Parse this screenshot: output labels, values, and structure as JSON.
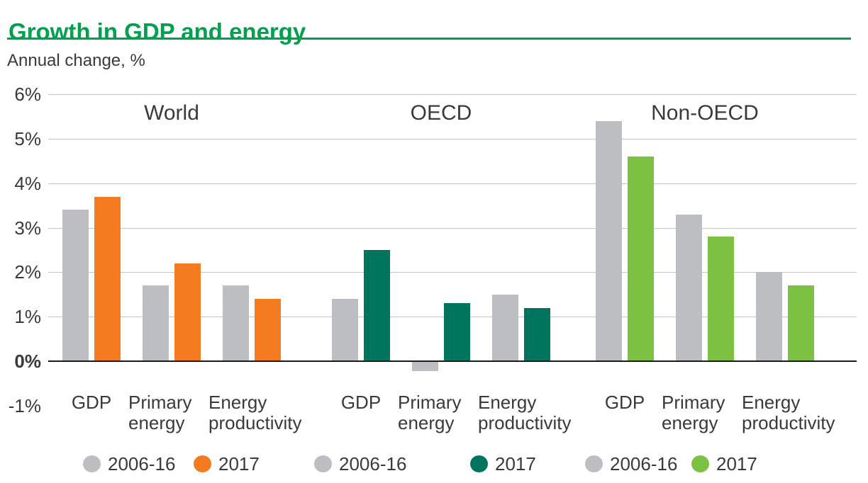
{
  "header": {
    "title": "Growth in GDP and energy",
    "subtitle": "Annual change, %"
  },
  "colors": {
    "title_green": "#00A14E",
    "text_dark": "#3A3A3C",
    "gridline_gray": "#C4C5C7",
    "axis_black": "#1A1A1A",
    "bar_gray": "#BDBEC1",
    "world_orange": "#F47B20",
    "oecd_teal": "#00755E",
    "non_oecd_green": "#7CC142",
    "page_background": "#FFFFFF"
  },
  "chart_data": {
    "type": "bar",
    "title": "Growth in GDP and energy",
    "ylabel": "Annual change, %",
    "ylim": [
      -1,
      6
    ],
    "ytick_labels": [
      "6%",
      "5%",
      "4%",
      "3%",
      "2%",
      "1%",
      "0%",
      "-1%"
    ],
    "ytick_values": [
      6,
      5,
      4,
      3,
      2,
      1,
      0,
      -1
    ],
    "grid": "horizontal, light gray, solid zero axis",
    "legend_position": "bottom",
    "categories": [
      "GDP",
      "Primary energy",
      "Energy productivity"
    ],
    "categories_lines": [
      [
        "GDP"
      ],
      [
        "Primary",
        "energy"
      ],
      [
        "Energy",
        "productivity"
      ]
    ],
    "groups": [
      {
        "name": "World",
        "series": [
          {
            "name": "2006-16",
            "color": "#BDBEC1",
            "values": [
              3.4,
              1.7,
              1.7
            ]
          },
          {
            "name": "2017",
            "color": "#F47B20",
            "values": [
              3.7,
              2.2,
              1.4
            ]
          }
        ]
      },
      {
        "name": "OECD",
        "series": [
          {
            "name": "2006-16",
            "color": "#BDBEC1",
            "values": [
              1.4,
              -0.2,
              1.5
            ]
          },
          {
            "name": "2017",
            "color": "#00755E",
            "values": [
              2.5,
              1.3,
              1.2
            ]
          }
        ]
      },
      {
        "name": "Non-OECD",
        "series": [
          {
            "name": "2006-16",
            "color": "#BDBEC1",
            "values": [
              5.4,
              3.3,
              2.0
            ]
          },
          {
            "name": "2017",
            "color": "#7CC142",
            "values": [
              4.6,
              2.8,
              1.7
            ]
          }
        ]
      }
    ],
    "legend": [
      {
        "label": "2006-16",
        "color": "#BDBEC1"
      },
      {
        "label": "2017",
        "color": "#F47B20"
      },
      {
        "label": "2006-16",
        "color": "#BDBEC1"
      },
      {
        "label": "2017",
        "color": "#00755E"
      },
      {
        "label": "2006-16",
        "color": "#BDBEC1"
      },
      {
        "label": "2017",
        "color": "#7CC142"
      }
    ]
  }
}
